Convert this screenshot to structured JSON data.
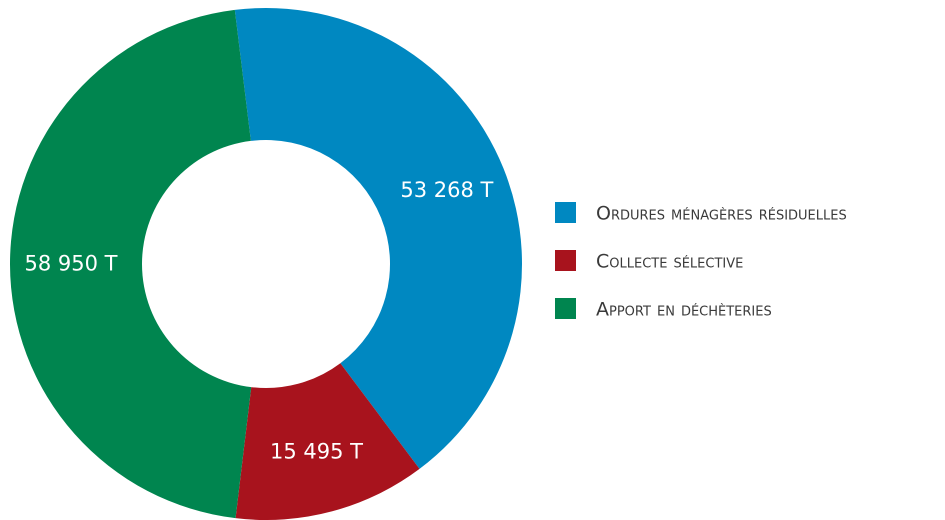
{
  "chart_data": {
    "type": "pie",
    "categories": [
      "Ordures ménagères résiduelles",
      "Collecte sélective",
      "Apport en déchèteries"
    ],
    "values": [
      53268,
      15495,
      58950
    ],
    "value_labels": [
      "53 268 T",
      "15 495 T",
      "58 950 T"
    ],
    "colors": [
      "#0088c1",
      "#a8131d",
      "#00854f"
    ],
    "legend": "right"
  }
}
